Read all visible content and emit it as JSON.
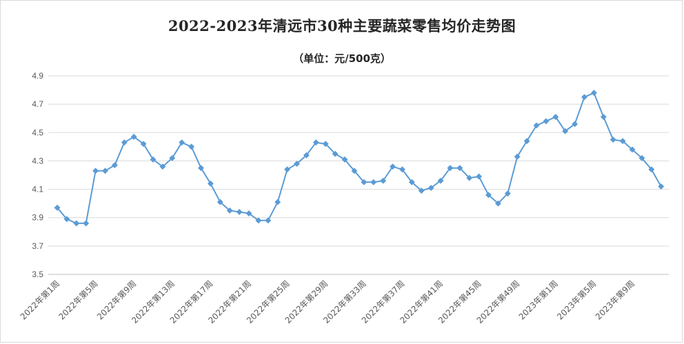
{
  "chart_data": {
    "type": "line",
    "title": "2022-2023年清远市30种主要蔬菜零售均价走势图",
    "subtitle": "（单位：元/500克）",
    "ylim": [
      3.5,
      4.9
    ],
    "yticks": [
      "3.5",
      "3.7",
      "3.9",
      "4.1",
      "4.3",
      "4.5",
      "4.7",
      "4.9"
    ],
    "grid": true,
    "legend": "none",
    "series_color": "#5b9bd5",
    "x_tick_labels": [
      {
        "index": 0,
        "label": "2022年第1周"
      },
      {
        "index": 4,
        "label": "2022年第5周"
      },
      {
        "index": 8,
        "label": "2022年第9周"
      },
      {
        "index": 12,
        "label": "2022年第13周"
      },
      {
        "index": 16,
        "label": "2022年第17周"
      },
      {
        "index": 20,
        "label": "2022年第21周"
      },
      {
        "index": 24,
        "label": "2022年第25周"
      },
      {
        "index": 28,
        "label": "2022年第29周"
      },
      {
        "index": 32,
        "label": "2022年第33周"
      },
      {
        "index": 36,
        "label": "2022年第37周"
      },
      {
        "index": 40,
        "label": "2022年第41周"
      },
      {
        "index": 44,
        "label": "2022年第45周"
      },
      {
        "index": 48,
        "label": "2022年第49周"
      },
      {
        "index": 52,
        "label": "2023年第1周"
      },
      {
        "index": 56,
        "label": "2023年第5周"
      },
      {
        "index": 60,
        "label": "2023年第9周"
      }
    ],
    "values": [
      3.97,
      3.89,
      3.86,
      3.86,
      4.23,
      4.23,
      4.27,
      4.43,
      4.47,
      4.42,
      4.31,
      4.26,
      4.32,
      4.43,
      4.4,
      4.25,
      4.14,
      4.01,
      3.95,
      3.94,
      3.93,
      3.88,
      3.88,
      4.01,
      4.24,
      4.28,
      4.34,
      4.43,
      4.42,
      4.35,
      4.31,
      4.23,
      4.15,
      4.15,
      4.16,
      4.26,
      4.24,
      4.15,
      4.09,
      4.11,
      4.16,
      4.25,
      4.25,
      4.18,
      4.19,
      4.06,
      4.0,
      4.07,
      4.33,
      4.44,
      4.55,
      4.58,
      4.61,
      4.51,
      4.56,
      4.75,
      4.78,
      4.61,
      4.45,
      4.44,
      4.38,
      4.32,
      4.24,
      4.12
    ]
  }
}
